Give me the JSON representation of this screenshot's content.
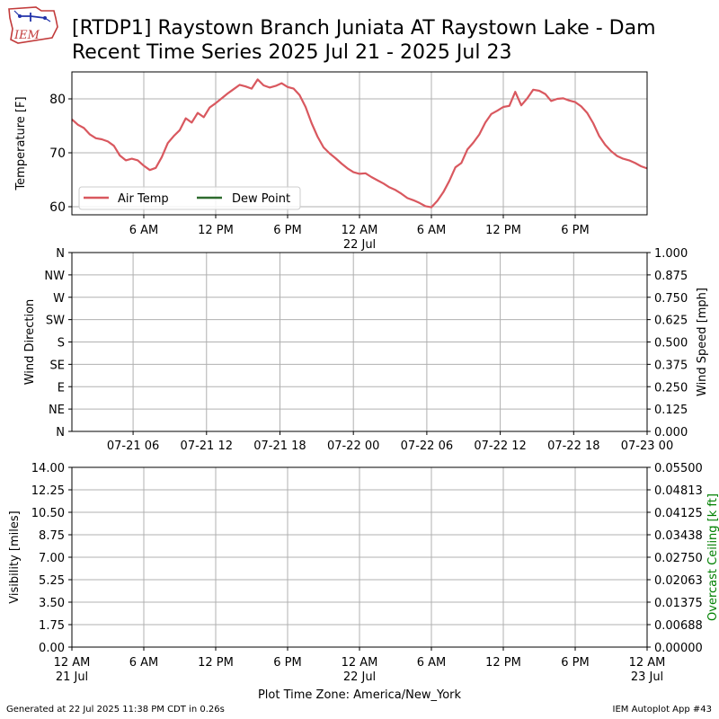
{
  "header": {
    "logo_text": "IEM",
    "title_line1": "[RTDP1] Raystown Branch Juniata  AT Raystown Lake - Dam",
    "title_line2": "Recent Time Series 2025 Jul 21 - 2025 Jul 23"
  },
  "footer": {
    "left": "Generated at 22 Jul 2025 11:38 PM CDT in 0.26s",
    "right": "IEM Autoplot App #43"
  },
  "colors": {
    "air_temp": "#d9585f",
    "dew_point": "#2e6b2e",
    "grid": "#b0b0b0",
    "ceiling_label": "#008000"
  },
  "chart_data": [
    {
      "type": "line",
      "ylabel": "Temperature [F]",
      "ylim": [
        58.5,
        85
      ],
      "yticks": [
        60,
        70,
        80
      ],
      "xlim": [
        0,
        48
      ],
      "x_unit": "hours since 2025-07-21 00:00 America/New_York",
      "xtick_labels": [
        {
          "x": 6,
          "label": "6 AM",
          "sub": ""
        },
        {
          "x": 12,
          "label": "12 PM",
          "sub": ""
        },
        {
          "x": 18,
          "label": "6 PM",
          "sub": ""
        },
        {
          "x": 24,
          "label": "12 AM",
          "sub": "22 Jul"
        },
        {
          "x": 30,
          "label": "6 AM",
          "sub": ""
        },
        {
          "x": 36,
          "label": "12 PM",
          "sub": ""
        },
        {
          "x": 42,
          "label": "6 PM",
          "sub": ""
        }
      ],
      "grid": true,
      "legend_placement": "lower-left",
      "series": [
        {
          "name": "Air Temp",
          "x": [
            0,
            0.5,
            1,
            1.5,
            2,
            2.5,
            3,
            3.5,
            4,
            4.5,
            5,
            5.5,
            6,
            6.5,
            7,
            7.5,
            8,
            8.5,
            9,
            9.5,
            10,
            10.5,
            11,
            11.5,
            12,
            12.5,
            13,
            13.5,
            14,
            14.5,
            15,
            15.5,
            16,
            16.5,
            17,
            17.5,
            18,
            18.5,
            19,
            19.5,
            20,
            20.5,
            21,
            21.5,
            22,
            22.5,
            23,
            23.5,
            24,
            24.5,
            25,
            25.5,
            26,
            26.5,
            27,
            27.5,
            28,
            28.5,
            29,
            29.5,
            30,
            30.5,
            31,
            31.5,
            32,
            32.5,
            33,
            33.5,
            34,
            34.5,
            35,
            35.5,
            36,
            36.5,
            37,
            37.5,
            38,
            38.5,
            39,
            39.5,
            40,
            40.5,
            41,
            41.5,
            42,
            42.5,
            43,
            43.5,
            44,
            44.5,
            45,
            45.5,
            46,
            46.5,
            47,
            47.5,
            48
          ],
          "y": [
            76.2,
            75.2,
            74.6,
            73.4,
            72.7,
            72.5,
            72.1,
            71.3,
            69.5,
            68.6,
            68.9,
            68.6,
            67.6,
            66.8,
            67.2,
            69.2,
            71.8,
            73.1,
            74.2,
            76.4,
            75.6,
            77.4,
            76.6,
            78.4,
            79.2,
            80.1,
            81.0,
            81.8,
            82.6,
            82.3,
            81.9,
            83.6,
            82.5,
            82.1,
            82.4,
            82.9,
            82.2,
            81.9,
            80.7,
            78.5,
            75.5,
            73.0,
            71.0,
            69.9,
            69.0,
            68.0,
            67.1,
            66.4,
            66.1,
            66.2,
            65.5,
            64.9,
            64.3,
            63.6,
            63.1,
            62.4,
            61.6,
            61.2,
            60.7,
            60.1,
            59.9,
            61.1,
            62.7,
            64.8,
            67.3,
            68.1,
            70.6,
            71.9,
            73.4,
            75.6,
            77.2,
            77.8,
            78.5,
            78.7,
            81.3,
            78.8,
            80.1,
            81.7,
            81.5,
            80.9,
            79.6,
            80.0,
            80.1,
            79.7,
            79.4,
            78.6,
            77.4,
            75.5,
            73.1,
            71.5,
            70.3,
            69.4,
            68.9,
            68.6,
            68.1,
            67.5,
            67.1
          ]
        },
        {
          "name": "Dew Point",
          "x": [],
          "y": []
        }
      ]
    },
    {
      "type": "line",
      "ylabel": "Wind Direction",
      "y2label": "Wind Speed [mph]",
      "ylim": [
        0,
        360
      ],
      "yticks": [
        0,
        45,
        90,
        135,
        180,
        225,
        270,
        315,
        360
      ],
      "ytick_labels": [
        "N",
        "NE",
        "E",
        "SE",
        "S",
        "SW",
        "W",
        "NW",
        "N"
      ],
      "y2lim": [
        0,
        1
      ],
      "y2tick_labels": [
        "0.000",
        "0.125",
        "0.250",
        "0.375",
        "0.500",
        "0.625",
        "0.750",
        "0.875",
        "1.000"
      ],
      "xlim": [
        1,
        48
      ],
      "xtick_labels": [
        {
          "x": 6,
          "label": "07-21 06"
        },
        {
          "x": 12,
          "label": "07-21 12"
        },
        {
          "x": 18,
          "label": "07-21 18"
        },
        {
          "x": 24,
          "label": "07-22 00"
        },
        {
          "x": 30,
          "label": "07-22 06"
        },
        {
          "x": 36,
          "label": "07-22 12"
        },
        {
          "x": 42,
          "label": "07-22 18"
        },
        {
          "x": 48,
          "label": "07-23 00"
        }
      ],
      "grid": true,
      "series": []
    },
    {
      "type": "line",
      "ylabel": "Visibility [miles]",
      "y2label": "Overcast Ceiling [k ft]",
      "ylim": [
        0,
        14
      ],
      "ytick_labels": [
        "0.00",
        "1.75",
        "3.50",
        "5.25",
        "7.00",
        "8.75",
        "10.50",
        "12.25",
        "14.00"
      ],
      "y2lim": [
        0,
        0.055
      ],
      "y2tick_labels": [
        "0.00000",
        "0.00688",
        "0.01375",
        "0.02063",
        "0.02750",
        "0.03438",
        "0.04125",
        "0.04813",
        "0.05500"
      ],
      "xlim": [
        0,
        48
      ],
      "xtick_labels": [
        {
          "x": 0,
          "label": "12 AM",
          "sub": "21 Jul"
        },
        {
          "x": 6,
          "label": "6 AM",
          "sub": ""
        },
        {
          "x": 12,
          "label": "12 PM",
          "sub": ""
        },
        {
          "x": 18,
          "label": "6 PM",
          "sub": ""
        },
        {
          "x": 24,
          "label": "12 AM",
          "sub": "22 Jul"
        },
        {
          "x": 30,
          "label": "6 AM",
          "sub": ""
        },
        {
          "x": 36,
          "label": "12 PM",
          "sub": ""
        },
        {
          "x": 42,
          "label": "6 PM",
          "sub": ""
        },
        {
          "x": 48,
          "label": "12 AM",
          "sub": "23 Jul"
        }
      ],
      "xlabel": "Plot Time Zone: America/New_York",
      "grid": true,
      "series": []
    }
  ]
}
